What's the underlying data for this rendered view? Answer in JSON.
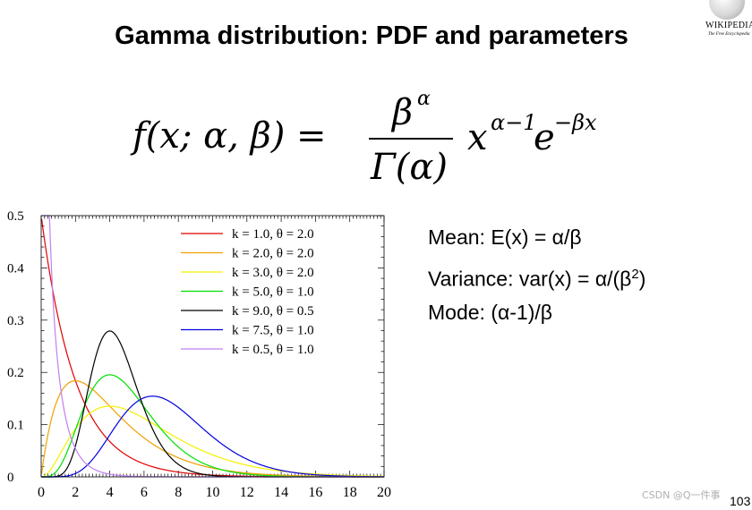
{
  "title": "Gamma distribution: PDF and parameters",
  "logo": {
    "wordmark": "WIKIPEDIA",
    "tagline": "The Free Encyclopedia"
  },
  "formula": {
    "lhs": "f(x; α, β) =",
    "numerator": "β",
    "numerator_sup": "α",
    "denominator": "Γ(α)",
    "base": "x",
    "exp1": "α−1",
    "base2": "e",
    "exp2": "−βx"
  },
  "stats": [
    {
      "label": "Mean: E(x) = α/β"
    },
    {
      "label": "Variance: var(x) = α/(β",
      "sup": "2",
      "tail": ")"
    },
    {
      "label": "Mode: (α-1)/β"
    }
  ],
  "chart_data": {
    "type": "line",
    "title": "",
    "xlabel": "",
    "ylabel": "",
    "xlim": [
      0,
      20
    ],
    "ylim": [
      0,
      0.5
    ],
    "x_ticks": [
      "0",
      "2",
      "4",
      "6",
      "8",
      "10",
      "12",
      "14",
      "16",
      "18",
      "20"
    ],
    "y_ticks": [
      "0",
      "0.1",
      "0.2",
      "0.3",
      "0.4",
      "0.5"
    ],
    "grid": false,
    "legend_position": "top-right",
    "series": [
      {
        "name": "k = 1.0, θ = 2.0",
        "k": 1.0,
        "theta": 2.0,
        "color": "#e00000"
      },
      {
        "name": "k = 2.0, θ = 2.0",
        "k": 2.0,
        "theta": 2.0,
        "color": "#f0a000"
      },
      {
        "name": "k = 3.0, θ = 2.0",
        "k": 3.0,
        "theta": 2.0,
        "color": "#f5f000"
      },
      {
        "name": "k = 5.0, θ = 1.0",
        "k": 5.0,
        "theta": 1.0,
        "color": "#00e000"
      },
      {
        "name": "k = 9.0, θ = 0.5",
        "k": 9.0,
        "theta": 0.5,
        "color": "#000000"
      },
      {
        "name": "k = 7.5, θ = 1.0",
        "k": 7.5,
        "theta": 1.0,
        "color": "#0000e0"
      },
      {
        "name": "k = 0.5, θ = 1.0",
        "k": 0.5,
        "theta": 1.0,
        "color": "#c080f0"
      }
    ]
  },
  "watermark": "CSDN @Q一件事",
  "page_number": "103"
}
